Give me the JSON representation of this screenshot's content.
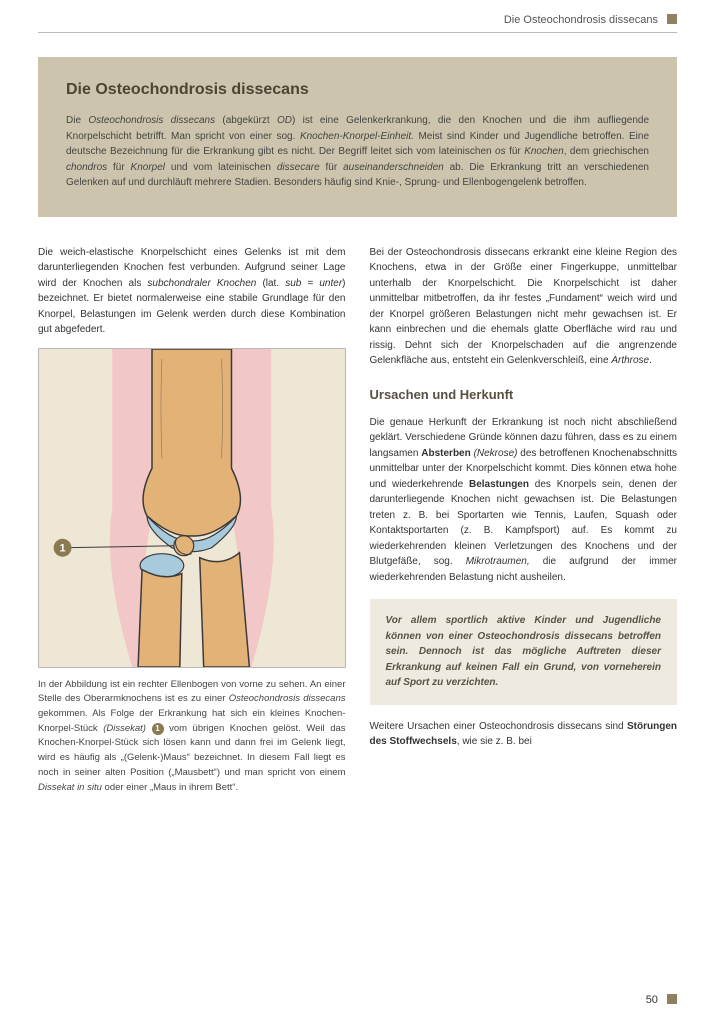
{
  "runningHeader": "Die Osteochondrosis dissecans",
  "pageNumber": "50",
  "intro": {
    "title": "Die Osteochondrosis dissecans",
    "body_parts": [
      {
        "t": "Die "
      },
      {
        "t": "Osteochondrosis dissecans",
        "it": true
      },
      {
        "t": " (abgekürzt "
      },
      {
        "t": "OD",
        "it": true
      },
      {
        "t": ") ist eine Gelenkerkrankung, die den Knochen und die ihm aufliegende Knorpelschicht betrifft. Man spricht von einer sog. "
      },
      {
        "t": "Knochen-Knorpel-Einheit.",
        "it": true
      },
      {
        "t": " Meist sind Kinder und Jugendliche betroffen. Eine deutsche Bezeichnung für die Erkrankung gibt es nicht. Der Begriff leitet sich vom lateinischen "
      },
      {
        "t": "os",
        "it": true
      },
      {
        "t": " für "
      },
      {
        "t": "Knochen",
        "it": true
      },
      {
        "t": ", dem griechischen "
      },
      {
        "t": "chondros",
        "it": true
      },
      {
        "t": " für "
      },
      {
        "t": "Knorpel",
        "it": true
      },
      {
        "t": " und vom lateinischen "
      },
      {
        "t": "dissecare",
        "it": true
      },
      {
        "t": " für "
      },
      {
        "t": "auseinanderschneiden",
        "it": true
      },
      {
        "t": " ab. Die Erkrankung tritt an verschiedenen Gelenken auf und durchläuft mehrere Stadien. Besonders häufig sind Knie-, Sprung- und Ellenbogengelenk betroffen."
      }
    ]
  },
  "left": {
    "p1_parts": [
      {
        "t": "Die weich-elastische Knorpelschicht eines Gelenks ist mit dem darunterliegenden Knochen fest verbunden. Aufgrund seiner Lage wird der Knochen als "
      },
      {
        "t": "subchondraler Knochen",
        "it": true
      },
      {
        "t": " (lat. "
      },
      {
        "t": "sub = unter",
        "it": true
      },
      {
        "t": ") bezeichnet. Er bietet normalerweise eine stabile Grundlage für den Knorpel, Belastungen im Gelenk werden durch diese Kombination gut abgefedert."
      }
    ],
    "caption_parts": [
      {
        "t": "In der Abbildung ist ein rechter Ellenbogen von vorne zu sehen. An einer Stelle des Oberarmknochens ist es zu einer "
      },
      {
        "t": "Osteochondrosis dissecans",
        "it": true
      },
      {
        "t": " gekommen. Als Folge der Erkrankung hat sich ein kleines Knochen-Knorpel-Stück "
      },
      {
        "t": "(Dissekat)",
        "it": true
      },
      {
        "t": " "
      },
      {
        "badge": "1"
      },
      {
        "t": " vom übrigen Knochen gelöst. Weil das Knochen-Knorpel-Stück sich lösen kann und dann frei im Gelenk liegt, wird es häufig als „(Gelenk-)Maus“ bezeichnet. In diesem Fall liegt es noch in seiner alten Position („Mausbett“) und man spricht von einem "
      },
      {
        "t": "Dissekat in situ",
        "it": true
      },
      {
        "t": " oder einer „Maus in ihrem Bett“."
      }
    ]
  },
  "right": {
    "p1_parts": [
      {
        "t": "Bei der Osteochondrosis dissecans erkrankt eine kleine Region des Knochens, etwa in der Größe einer Fingerkuppe, unmittelbar unterhalb der Knorpelschicht. Die Knorpelschicht ist daher unmittelbar mitbetroffen, da ihr festes „Fundament“ weich wird und der Knorpel größeren Belastungen nicht mehr gewachsen ist. Er kann einbrechen und die ehemals glatte Oberfläche wird rau und rissig. Dehnt sich der Knorpelschaden auf die angrenzende Gelenkfläche aus, entsteht ein Gelenkverschleiß, eine "
      },
      {
        "t": "Arthrose",
        "it": true
      },
      {
        "t": "."
      }
    ],
    "h2": "Ursachen und Herkunft",
    "p2_parts": [
      {
        "t": "Die genaue Herkunft der Erkrankung ist noch nicht abschließend geklärt. Verschiedene Gründe können dazu führen, dass es zu einem langsamen "
      },
      {
        "t": "Absterben",
        "b": true
      },
      {
        "t": " "
      },
      {
        "t": "(Nekrose)",
        "it": true
      },
      {
        "t": " des betroffenen Knochenabschnitts unmittelbar unter der Knorpelschicht kommt. Dies können etwa hohe und wiederkehrende "
      },
      {
        "t": "Belastungen",
        "b": true
      },
      {
        "t": " des Knorpels sein, denen der darunterliegende Knochen nicht gewachsen ist. Die Belastungen treten z. B. bei Sportarten wie Tennis, Laufen, Squash oder Kontaktsportarten (z. B. Kampfsport) auf. Es kommt zu wiederkehrenden kleinen Verletzungen des Knochens und der Blutgefäße, sog. "
      },
      {
        "t": "Mikrotraumen,",
        "it": true
      },
      {
        "t": " die aufgrund der immer wiederkehrenden Belastung nicht ausheilen."
      }
    ],
    "callout": "Vor allem sportlich aktive Kinder und Jugendliche können von einer Osteochondrosis dissecans betroffen sein. Dennoch ist das mögliche Auftreten dieser Erkrankung auf keinen Fall ein Grund, von vorneherein auf Sport zu verzichten.",
    "p3_parts": [
      {
        "t": "Weitere Ursachen einer Osteochondrosis dissecans sind "
      },
      {
        "t": "Störungen des Stoffwechsels",
        "b": true
      },
      {
        "t": ", wie sie z. B. bei"
      }
    ]
  },
  "figure": {
    "colors": {
      "bg": "#efe7d5",
      "skin": "#f2c7c7",
      "bone_fill": "#e2b277",
      "bone_stroke": "#3a3a3a",
      "cartilage": "#a7cadd",
      "marker_fill": "#8a7a52",
      "marker_text": "#ffffff"
    },
    "marker_label": "1"
  }
}
